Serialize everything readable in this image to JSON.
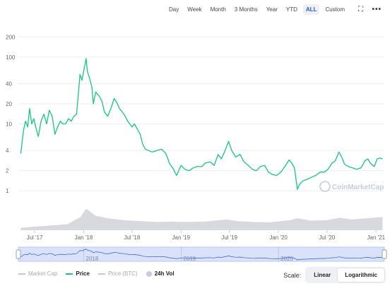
{
  "toolbar": {
    "ranges": [
      "Day",
      "Week",
      "Month",
      "3 Months",
      "Year",
      "YTD",
      "ALL",
      "Custom"
    ],
    "active_range": "ALL",
    "expand_icon": "expand-icon",
    "more_icon": "more-icon"
  },
  "watermark": "CoinMarketCap",
  "legend": {
    "items": [
      {
        "label": "Market Cap",
        "color": "#c8c8c8",
        "kind": "line"
      },
      {
        "label": "Price",
        "color": "#16c784",
        "kind": "line",
        "emphasis": true
      },
      {
        "label": "Price (BTC)",
        "color": "#c8c8c8",
        "kind": "line"
      },
      {
        "label": "24h Vol",
        "color": "#c5cbe0",
        "kind": "dot",
        "emphasis": true
      }
    ]
  },
  "scale": {
    "label": "Scale:",
    "options": [
      "Linear",
      "Logarithmic"
    ],
    "active": "Logarithmic"
  },
  "chart_data": {
    "type": "line",
    "scale": "log",
    "y_ticks": [
      1,
      2,
      4,
      10,
      20,
      40,
      100,
      200
    ],
    "x_ticks": [
      "Jul '17",
      "Jan '18",
      "Jul '18",
      "Jan '19",
      "Jul '19",
      "Jan '20",
      "Jul '20",
      "Jan '21"
    ],
    "navigator_labels": [
      "2018",
      "2019",
      "2020"
    ],
    "grid": true,
    "colors": {
      "price": "#16c784",
      "volume": "#d7d9de",
      "navigator_fill": "#c9d6f5",
      "navigator_line": "#2d5bd8"
    },
    "series": [
      {
        "name": "Price",
        "points": [
          [
            "2017-05-10",
            3.6
          ],
          [
            "2017-05-20",
            8
          ],
          [
            "2017-05-28",
            11
          ],
          [
            "2017-06-05",
            9
          ],
          [
            "2017-06-12",
            17
          ],
          [
            "2017-06-20",
            10
          ],
          [
            "2017-06-28",
            12
          ],
          [
            "2017-07-05",
            9
          ],
          [
            "2017-07-15",
            6.5
          ],
          [
            "2017-07-25",
            11
          ],
          [
            "2017-08-05",
            14
          ],
          [
            "2017-08-15",
            10
          ],
          [
            "2017-08-25",
            16
          ],
          [
            "2017-09-05",
            13
          ],
          [
            "2017-09-15",
            7
          ],
          [
            "2017-09-25",
            9
          ],
          [
            "2017-10-05",
            11
          ],
          [
            "2017-10-15",
            10
          ],
          [
            "2017-10-25",
            10
          ],
          [
            "2017-11-05",
            12
          ],
          [
            "2017-11-15",
            11
          ],
          [
            "2017-11-25",
            13
          ],
          [
            "2017-12-05",
            14
          ],
          [
            "2017-12-12",
            28
          ],
          [
            "2017-12-18",
            55
          ],
          [
            "2017-12-25",
            45
          ],
          [
            "2018-01-05",
            75
          ],
          [
            "2018-01-10",
            95
          ],
          [
            "2018-01-15",
            60
          ],
          [
            "2018-01-22",
            50
          ],
          [
            "2018-02-01",
            35
          ],
          [
            "2018-02-06",
            20
          ],
          [
            "2018-02-15",
            30
          ],
          [
            "2018-02-28",
            26
          ],
          [
            "2018-03-10",
            22
          ],
          [
            "2018-03-20",
            15
          ],
          [
            "2018-04-01",
            13
          ],
          [
            "2018-04-15",
            18
          ],
          [
            "2018-04-25",
            24
          ],
          [
            "2018-05-05",
            21
          ],
          [
            "2018-05-15",
            17
          ],
          [
            "2018-06-01",
            14
          ],
          [
            "2018-06-15",
            11
          ],
          [
            "2018-07-01",
            9
          ],
          [
            "2018-07-10",
            10
          ],
          [
            "2018-07-20",
            8.5
          ],
          [
            "2018-08-01",
            7
          ],
          [
            "2018-08-10",
            5
          ],
          [
            "2018-08-20",
            4.2
          ],
          [
            "2018-09-01",
            4
          ],
          [
            "2018-09-15",
            3.8
          ],
          [
            "2018-10-01",
            4
          ],
          [
            "2018-10-20",
            4.2
          ],
          [
            "2018-11-05",
            3.6
          ],
          [
            "2018-11-20",
            2.5
          ],
          [
            "2018-12-01",
            2.2
          ],
          [
            "2018-12-15",
            1.7
          ],
          [
            "2019-01-01",
            2.4
          ],
          [
            "2019-01-15",
            2.1
          ],
          [
            "2019-02-01",
            2
          ],
          [
            "2019-02-15",
            2.2
          ],
          [
            "2019-03-01",
            2.3
          ],
          [
            "2019-03-20",
            2.3
          ],
          [
            "2019-04-01",
            2.6
          ],
          [
            "2019-04-20",
            2.7
          ],
          [
            "2019-05-05",
            2.4
          ],
          [
            "2019-05-20",
            3.5
          ],
          [
            "2019-06-01",
            3
          ],
          [
            "2019-06-15",
            4
          ],
          [
            "2019-06-28",
            5.5
          ],
          [
            "2019-07-10",
            4
          ],
          [
            "2019-07-25",
            3.2
          ],
          [
            "2019-08-10",
            3.5
          ],
          [
            "2019-08-25",
            2.7
          ],
          [
            "2019-09-10",
            2.4
          ],
          [
            "2019-09-25",
            2.1
          ],
          [
            "2019-10-10",
            2
          ],
          [
            "2019-10-25",
            2.3
          ],
          [
            "2019-11-10",
            2.4
          ],
          [
            "2019-11-25",
            1.9
          ],
          [
            "2019-12-10",
            1.75
          ],
          [
            "2019-12-25",
            1.7
          ],
          [
            "2020-01-10",
            1.9
          ],
          [
            "2020-01-25",
            2.3
          ],
          [
            "2020-02-10",
            2.9
          ],
          [
            "2020-02-20",
            2.6
          ],
          [
            "2020-03-01",
            2.2
          ],
          [
            "2020-03-12",
            1.05
          ],
          [
            "2020-03-20",
            1.25
          ],
          [
            "2020-04-01",
            1.4
          ],
          [
            "2020-04-20",
            1.5
          ],
          [
            "2020-05-05",
            1.6
          ],
          [
            "2020-05-20",
            1.7
          ],
          [
            "2020-06-05",
            1.9
          ],
          [
            "2020-06-20",
            1.9
          ],
          [
            "2020-07-05",
            2.1
          ],
          [
            "2020-07-20",
            2.6
          ],
          [
            "2020-08-01",
            2.8
          ],
          [
            "2020-08-15",
            3.8
          ],
          [
            "2020-08-25",
            3.2
          ],
          [
            "2020-09-05",
            2.5
          ],
          [
            "2020-09-20",
            2.3
          ],
          [
            "2020-10-05",
            2.2
          ],
          [
            "2020-10-20",
            2.1
          ],
          [
            "2020-11-05",
            2.2
          ],
          [
            "2020-11-20",
            2.8
          ],
          [
            "2020-12-01",
            3
          ],
          [
            "2020-12-10",
            2.6
          ],
          [
            "2020-12-25",
            2.3
          ],
          [
            "2021-01-05",
            3
          ],
          [
            "2021-01-15",
            3.1
          ],
          [
            "2021-01-25",
            3
          ]
        ]
      },
      {
        "name": "24h Vol",
        "points": [
          [
            "2017-05-10",
            0.1
          ],
          [
            "2017-07-01",
            0.15
          ],
          [
            "2017-09-01",
            0.2
          ],
          [
            "2017-11-01",
            0.25
          ],
          [
            "2017-12-20",
            0.55
          ],
          [
            "2018-01-10",
            0.9
          ],
          [
            "2018-02-15",
            0.6
          ],
          [
            "2018-04-01",
            0.5
          ],
          [
            "2018-06-01",
            0.42
          ],
          [
            "2018-08-01",
            0.38
          ],
          [
            "2018-10-01",
            0.34
          ],
          [
            "2018-12-01",
            0.36
          ],
          [
            "2019-02-01",
            0.34
          ],
          [
            "2019-04-01",
            0.36
          ],
          [
            "2019-06-20",
            0.45
          ],
          [
            "2019-08-01",
            0.38
          ],
          [
            "2019-10-01",
            0.34
          ],
          [
            "2019-12-01",
            0.33
          ],
          [
            "2020-02-15",
            0.42
          ],
          [
            "2020-03-12",
            0.5
          ],
          [
            "2020-05-01",
            0.4
          ],
          [
            "2020-07-01",
            0.42
          ],
          [
            "2020-08-20",
            0.52
          ],
          [
            "2020-10-01",
            0.45
          ],
          [
            "2020-12-01",
            0.5
          ],
          [
            "2021-01-25",
            0.55
          ]
        ]
      }
    ]
  }
}
